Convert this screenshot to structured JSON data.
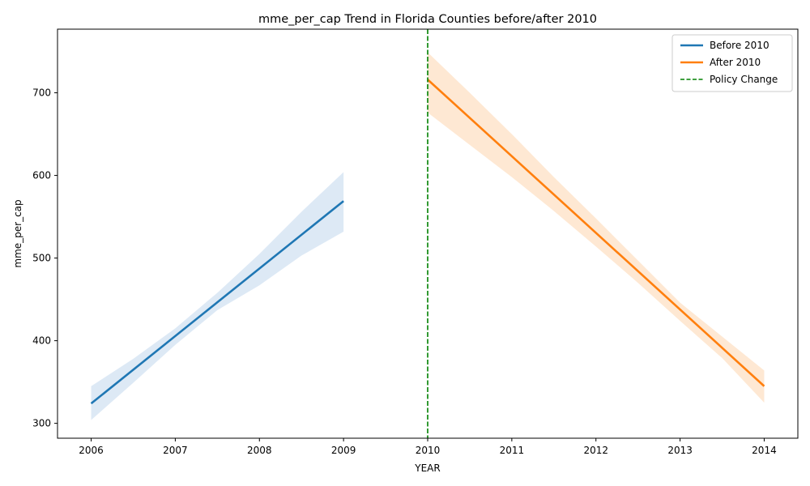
{
  "chart_data": {
    "type": "line",
    "title": "mme_per_cap Trend in Florida Counties before/after 2010",
    "xlabel": "YEAR",
    "ylabel": "mme_per_cap",
    "xlim": [
      2005.6,
      2014.4
    ],
    "ylim": [
      282,
      777
    ],
    "xticks": [
      2006,
      2007,
      2008,
      2009,
      2010,
      2011,
      2012,
      2013,
      2014
    ],
    "yticks": [
      300,
      400,
      500,
      600,
      700
    ],
    "grid": false,
    "legend_position": "top-right",
    "series": [
      {
        "name": "Before 2010",
        "color": "#1f77b4",
        "band_color": "#c6dbef",
        "x": [
          2006,
          2009
        ],
        "y": [
          324,
          569
        ],
        "ci_x": [
          2006,
          2006.5,
          2007,
          2007.5,
          2008,
          2008.5,
          2009
        ],
        "ci_upper": [
          345,
          378,
          415,
          458,
          505,
          556,
          604
        ],
        "ci_lower": [
          304,
          349,
          395,
          437,
          467,
          503,
          532
        ]
      },
      {
        "name": "After 2010",
        "color": "#ff7f0e",
        "band_color": "#fdd9b5",
        "x": [
          2010,
          2014
        ],
        "y": [
          716,
          345
        ],
        "ci_x": [
          2010,
          2010.5,
          2011,
          2011.5,
          2012,
          2012.5,
          2013,
          2013.5,
          2014
        ],
        "ci_upper": [
          749,
          700,
          650,
          598,
          548,
          497,
          446,
          405,
          364
        ],
        "ci_lower": [
          676,
          637,
          598,
          557,
          514,
          470,
          424,
          379,
          325
        ]
      }
    ],
    "reference_lines": [
      {
        "name": "Policy Change",
        "x": 2010,
        "color": "#008000",
        "style": "dashed"
      }
    ]
  }
}
